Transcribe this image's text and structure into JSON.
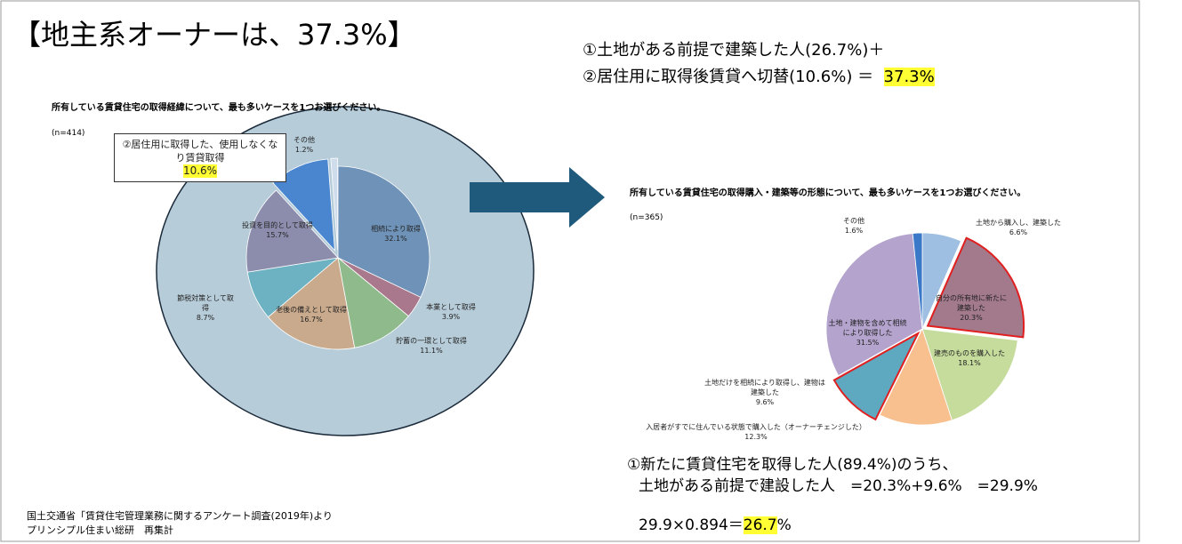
{
  "header": {
    "title": "【地主系オーナーは、37.3%】"
  },
  "formula": {
    "line1": "①土地がある前提で建築した人(26.7%)＋",
    "line2": "②居住用に取得後賃貸へ切替(10.6%) ＝",
    "result": "37.3%"
  },
  "chart_data": [
    {
      "type": "pie",
      "title": "所有している賃貸住宅の取得経緯について、最も多いケースを1つお選びください。",
      "note": "(n=414)",
      "categories": [
        "相続により取得",
        "本業として取得",
        "貯蓄の一環として取得",
        "老後の備えとして取得",
        "節税対策として取得",
        "投資を目的として取得",
        "②居住用に取得した、使用しなくなり賃貸取得",
        "その他"
      ],
      "values": [
        32.1,
        3.9,
        11.1,
        16.7,
        8.7,
        15.7,
        10.6,
        1.2
      ],
      "value_labels": [
        "32.1%",
        "3.9%",
        "11.1%",
        "16.7%",
        "8.7%",
        "15.7%",
        "10.6%",
        "1.2%"
      ],
      "colors": [
        "#6f93b8",
        "#a9788c",
        "#8fba8c",
        "#c9aa8c",
        "#6cb2c2",
        "#8c8cac",
        "#4a86d0",
        "#cfdcec"
      ]
    },
    {
      "type": "pie",
      "title": "所有している賃貸住宅の取得購入・建築等の形態について、最も多いケースを1つお選びください。",
      "note": "(n=365)",
      "categories": [
        "土地から購入し、建築した",
        "自分の所有地に新たに建築した",
        "建売のものを購入した",
        "入居者がすでに住んでいる状態で購入した（オーナーチェンジした）",
        "土地だけを相続により取得し、建物は建築した",
        "土地・建物を含めて相続により取得した",
        "その他"
      ],
      "values": [
        6.6,
        20.3,
        18.1,
        12.3,
        9.6,
        31.5,
        1.6
      ],
      "value_labels": [
        "6.6%",
        "20.3%",
        "18.1%",
        "12.3%",
        "9.6%",
        "31.5%",
        "1.6%"
      ],
      "colors": [
        "#9ebfe2",
        "#a27a8c",
        "#c6dc9c",
        "#f8c08f",
        "#5ea8c0",
        "#b3a3cd",
        "#3a78c8"
      ]
    }
  ],
  "calculation": {
    "line1": "①新たに賃貸住宅を取得した人(89.4%)のうち、",
    "line2": "土地がある前提で建設した人　=20.3%+9.6%　=29.9%",
    "line3": "29.9×0.894＝",
    "result": "26.7",
    "unit": "%"
  },
  "source": [
    "国土交通省「賃貸住宅管理業務に関するアンケート調査(2019年)より",
    "プリンシプル住まい総研　再集計"
  ]
}
